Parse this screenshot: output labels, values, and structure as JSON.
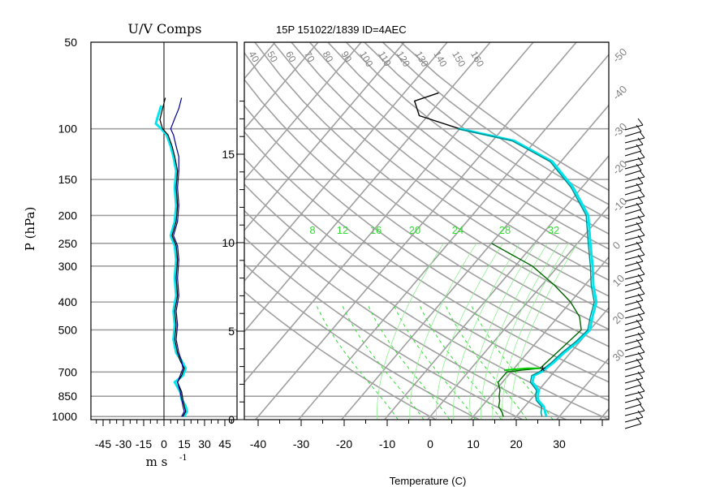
{
  "header": {
    "uv_title": "U/V Comps",
    "skewt_title": "15P 151022/1839 ID=4AEC"
  },
  "chart_data": [
    {
      "type": "line",
      "panel": "uv-components",
      "title": "U/V Comps",
      "xlabel": "m s",
      "xlabel_exponent": "-1",
      "ylabel": "P (hPa)",
      "xlim": [
        -54,
        54
      ],
      "ylim": [
        1025,
        50
      ],
      "y_scale": "log",
      "x_ticks": [
        -45,
        -30,
        -15,
        0,
        15,
        30,
        45
      ],
      "x_tick_labels": [
        "-45",
        "-30",
        "-15",
        "0",
        "15",
        "30",
        "45"
      ],
      "pressure_levels": [
        50,
        100,
        150,
        200,
        250,
        300,
        400,
        500,
        700,
        850,
        1000
      ],
      "pressure_labels": [
        "50",
        "100",
        "150",
        "200",
        "250",
        "300",
        "400",
        "500",
        "700",
        "850",
        "1000"
      ],
      "series": [
        {
          "color": "#00e5ee",
          "points": [
            [
              -2,
              83
            ],
            [
              -5,
              92
            ],
            [
              -6,
              96
            ],
            [
              -2,
              100
            ],
            [
              2,
              105
            ],
            [
              5,
              115
            ],
            [
              7,
              125
            ],
            [
              9,
              140
            ],
            [
              8,
              160
            ],
            [
              9,
              185
            ],
            [
              8,
              210
            ],
            [
              5,
              235
            ],
            [
              8,
              255
            ],
            [
              9,
              285
            ],
            [
              8,
              330
            ],
            [
              9,
              380
            ],
            [
              7,
              430
            ],
            [
              8,
              480
            ],
            [
              7,
              540
            ],
            [
              9,
              600
            ],
            [
              13,
              640
            ],
            [
              16,
              680
            ],
            [
              14,
              720
            ],
            [
              8,
              760
            ],
            [
              12,
              820
            ],
            [
              13,
              870
            ],
            [
              16,
              920
            ],
            [
              17,
              960
            ],
            [
              15,
              1000
            ]
          ]
        },
        {
          "color": "#000000",
          "points": [
            [
              1,
              78
            ],
            [
              -1,
              85
            ],
            [
              -3,
              93
            ],
            [
              -1,
              100
            ],
            [
              3,
              105
            ],
            [
              6,
              115
            ],
            [
              8,
              125
            ],
            [
              10,
              140
            ],
            [
              9,
              160
            ],
            [
              10,
              185
            ],
            [
              9,
              210
            ],
            [
              6,
              235
            ],
            [
              9,
              255
            ],
            [
              10,
              285
            ],
            [
              9,
              330
            ],
            [
              10,
              380
            ],
            [
              8,
              430
            ],
            [
              9,
              480
            ],
            [
              8,
              540
            ],
            [
              10,
              600
            ],
            [
              12,
              640
            ],
            [
              15,
              680
            ],
            [
              13,
              720
            ],
            [
              10,
              760
            ],
            [
              13,
              820
            ],
            [
              14,
              870
            ],
            [
              15,
              920
            ],
            [
              16,
              960
            ],
            [
              14,
              1000
            ]
          ]
        },
        {
          "color": "#00008b",
          "points": [
            [
              13,
              78
            ],
            [
              11,
              85
            ],
            [
              8,
              92
            ],
            [
              5,
              100
            ],
            [
              7,
              105
            ],
            [
              9,
              115
            ],
            [
              11,
              125
            ],
            [
              11,
              140
            ],
            [
              10,
              160
            ],
            [
              11,
              185
            ],
            [
              10,
              210
            ],
            [
              7,
              235
            ],
            [
              10,
              255
            ],
            [
              11,
              285
            ],
            [
              10,
              330
            ],
            [
              11,
              380
            ],
            [
              9,
              430
            ],
            [
              10,
              480
            ],
            [
              9,
              540
            ],
            [
              11,
              600
            ],
            [
              13,
              640
            ],
            [
              14,
              680
            ],
            [
              12,
              720
            ],
            [
              10,
              760
            ],
            [
              12,
              820
            ],
            [
              13,
              870
            ],
            [
              14,
              920
            ],
            [
              15,
              960
            ],
            [
              13,
              1000
            ]
          ]
        }
      ]
    },
    {
      "type": "line",
      "panel": "skew-t",
      "title": "15P 151022/1839 ID=4AEC",
      "xlabel": "Temperature (C)",
      "xlim": [
        -45,
        42
      ],
      "x_ticks": [
        -40,
        -30,
        -20,
        -10,
        0,
        10,
        20,
        30
      ],
      "x_tick_labels": [
        "-40",
        "-30",
        "-20",
        "-10",
        "0",
        "10",
        "20",
        "30"
      ],
      "height_ticks_km": [
        0,
        5,
        10,
        15
      ],
      "height_tick_labels": [
        "0",
        "5",
        "10",
        "15"
      ],
      "dry_adiabat_labels": [
        "40",
        "50",
        "60",
        "70",
        "80",
        "90",
        "100",
        "110",
        "120",
        "130",
        "140",
        "150",
        "160"
      ],
      "mixing_ratio_labels": [
        "8",
        "12",
        "16",
        "20",
        "24",
        "28",
        "32"
      ],
      "isotherm_labels": [
        "-50",
        "-40",
        "-30",
        "-20",
        "-10",
        "0",
        "10",
        "20",
        "30"
      ],
      "series": [
        {
          "name": "temperature",
          "color": "#000000",
          "points": [
            [
              27,
              1000
            ],
            [
              26,
              970
            ],
            [
              24.5,
              925
            ],
            [
              22,
              880
            ],
            [
              21,
              850
            ],
            [
              20,
              810
            ],
            [
              17,
              760
            ],
            [
              16,
              720
            ],
            [
              17,
              700
            ],
            [
              18,
              650
            ],
            [
              18.5,
              600
            ],
            [
              19.5,
              550
            ],
            [
              20,
              500
            ],
            [
              18,
              450
            ],
            [
              16,
              400
            ],
            [
              12,
              350
            ],
            [
              8,
              300
            ],
            [
              3,
              250
            ],
            [
              -3,
              200
            ],
            [
              -12,
              160
            ],
            [
              -22,
              130
            ],
            [
              -35,
              110
            ],
            [
              -50,
              100
            ],
            [
              -62,
              90
            ],
            [
              -66,
              80
            ],
            [
              -62,
              75
            ]
          ]
        },
        {
          "name": "dewpoint",
          "color": "#006400",
          "points": [
            [
              17,
              1000
            ],
            [
              16,
              970
            ],
            [
              14,
              925
            ],
            [
              13,
              880
            ],
            [
              12,
              850
            ],
            [
              11,
              810
            ],
            [
              9,
              760
            ],
            [
              9,
              730
            ],
            [
              9,
              700
            ],
            [
              12,
              690
            ],
            [
              16,
              680
            ],
            [
              18,
              500
            ],
            [
              15,
              450
            ],
            [
              10,
              400
            ],
            [
              3,
              350
            ],
            [
              -6,
              300
            ],
            [
              -20,
              250
            ]
          ]
        },
        {
          "name": "parcel",
          "color": "#00cc00",
          "points": [
            [
              8,
              690
            ],
            [
              13,
              680
            ],
            [
              16,
              680
            ]
          ]
        },
        {
          "name": "environment-cyan",
          "color": "#00e5ee",
          "points": [
            [
              27,
              1000
            ],
            [
              26,
              970
            ],
            [
              24.5,
              925
            ],
            [
              22,
              880
            ],
            [
              21,
              850
            ],
            [
              20,
              810
            ],
            [
              17,
              760
            ],
            [
              16,
              720
            ],
            [
              17,
              700
            ],
            [
              18,
              650
            ],
            [
              18.5,
              600
            ],
            [
              19.5,
              550
            ],
            [
              20,
              500
            ],
            [
              18,
              450
            ],
            [
              16,
              400
            ],
            [
              12,
              350
            ],
            [
              8,
              300
            ],
            [
              3,
              250
            ],
            [
              -3,
              200
            ],
            [
              -12,
              160
            ],
            [
              -22,
              130
            ],
            [
              -35,
              110
            ],
            [
              -50,
              100
            ]
          ]
        },
        {
          "name": "environment-teal",
          "color": "#008b8b",
          "points": [
            [
              26,
              1000
            ],
            [
              25,
              970
            ],
            [
              24,
              925
            ],
            [
              21.5,
              880
            ],
            [
              20.5,
              850
            ],
            [
              19.5,
              810
            ],
            [
              16.5,
              760
            ],
            [
              15.5,
              720
            ],
            [
              16.5,
              700
            ],
            [
              17.5,
              650
            ],
            [
              18,
              600
            ],
            [
              19,
              550
            ],
            [
              19.5,
              500
            ],
            [
              17.5,
              450
            ],
            [
              15.5,
              400
            ],
            [
              11.5,
              350
            ],
            [
              7.5,
              300
            ],
            [
              2.5,
              250
            ],
            [
              -3.5,
              200
            ],
            [
              -12.5,
              160
            ],
            [
              -22.5,
              130
            ],
            [
              -35.5,
              110
            ],
            [
              -50.5,
              100
            ]
          ]
        }
      ],
      "lcl_marker": "*"
    }
  ]
}
